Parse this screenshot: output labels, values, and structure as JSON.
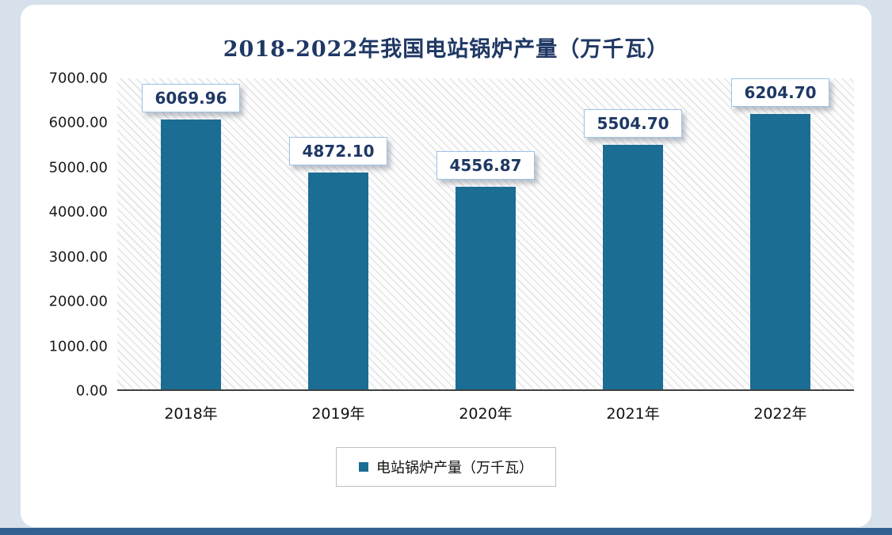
{
  "colors": {
    "bar_color": "#1b6d93",
    "title_color": "#1f3864",
    "value_label_text": "#1f3864",
    "value_label_border": "#9dc3e6",
    "page_background": "#d7e1eb",
    "bottom_bar": "#30618f",
    "axis_line": "#404040",
    "legend_border": "#bfbfbf"
  },
  "chart_data": {
    "type": "bar",
    "title": "2018-2022年我国电站锅炉产量（万千瓦）",
    "categories": [
      "2018年",
      "2019年",
      "2020年",
      "2021年",
      "2022年"
    ],
    "values": [
      6069.96,
      4872.1,
      4556.87,
      5504.7,
      6204.7
    ],
    "value_labels": [
      "6069.96",
      "4872.10",
      "4556.87",
      "5504.70",
      "6204.70"
    ],
    "series_name": "电站锅炉产量（万千瓦）",
    "legend": "电站锅炉产量（万千瓦）",
    "legend_position": "bottom",
    "xlabel": "",
    "ylabel": "",
    "ylim": [
      0,
      7000
    ],
    "ytick_step": 1000,
    "yticks": [
      "7000.00",
      "6000.00",
      "5000.00",
      "4000.00",
      "3000.00",
      "2000.00",
      "1000.00",
      "0.00"
    ],
    "grid": false,
    "plot_background": "diagonal-hatch"
  }
}
